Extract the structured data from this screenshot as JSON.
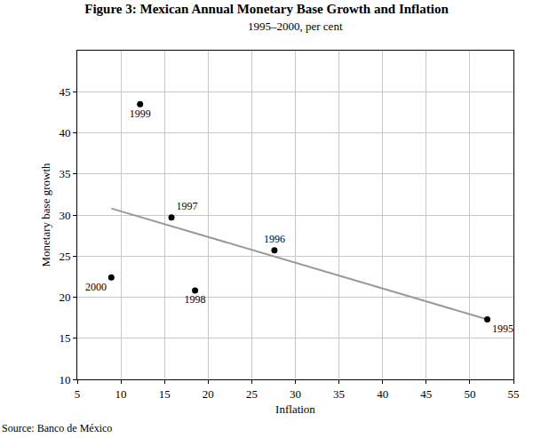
{
  "chart_data": {
    "type": "scatter",
    "title": "Figure 3: Mexican Annual Monetary Base Growth and Inflation",
    "subtitle": "1995–2000, per cent",
    "x_label": "Inflation",
    "y_label": "Monetary base growth",
    "source": "Source: Banco de México",
    "xlim": [
      5,
      55
    ],
    "xticks": [
      5,
      10,
      15,
      20,
      25,
      30,
      35,
      40,
      45,
      50,
      55
    ],
    "ylim": [
      10,
      50
    ],
    "yticks": [
      10,
      15,
      20,
      25,
      30,
      35,
      40,
      45
    ],
    "grid": true,
    "series": [
      {
        "type": "scatter",
        "marker": "circle",
        "color": "#000000",
        "x": [
          52,
          27.6,
          15.8,
          18.5,
          12.2,
          8.9
        ],
        "values": [
          17.3,
          25.7,
          29.7,
          20.8,
          43.5,
          22.4
        ],
        "labels": [
          "1995",
          "1996",
          "1997",
          "1998",
          "1999",
          "2000"
        ]
      },
      {
        "type": "line",
        "line_style": "solid",
        "color": "#999999",
        "x": [
          8.9,
          52
        ],
        "values": [
          30.8,
          17.3
        ]
      }
    ]
  }
}
